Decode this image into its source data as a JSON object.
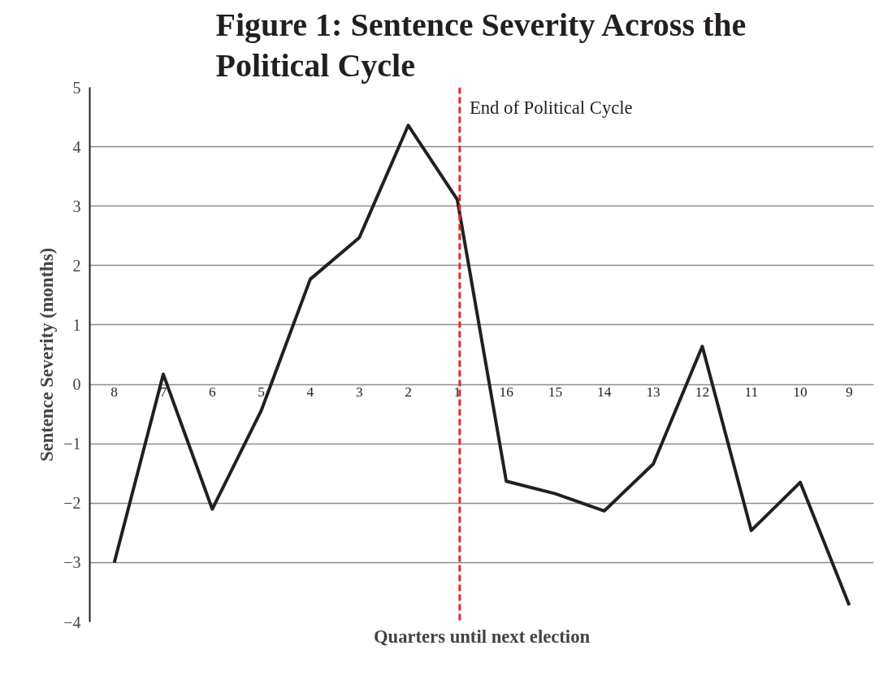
{
  "chart_data": {
    "type": "line",
    "title": "Figure 1: Sentence Severity Across the Political Cycle",
    "xlabel": "Quarters until next election",
    "ylabel": "Sentence Severity (months)",
    "categories": [
      "8",
      "7",
      "6",
      "5",
      "4",
      "3",
      "2",
      "1",
      "16",
      "15",
      "14",
      "13",
      "12",
      "11",
      "10",
      "9"
    ],
    "series": [
      {
        "color": "#231f20",
        "values": [
          -3.0,
          0.17,
          -2.1,
          -0.44,
          1.77,
          2.47,
          4.36,
          3.11,
          -1.63,
          -1.84,
          -2.13,
          -1.34,
          0.64,
          -2.46,
          -1.65,
          -3.72
        ]
      }
    ],
    "ylim": [
      -4,
      5
    ],
    "yticks": [
      -4,
      -3,
      -2,
      -1,
      0,
      1,
      2,
      3,
      4,
      5
    ],
    "grid": "y",
    "marker": "none",
    "line_style": "solid",
    "ref_lines": [
      {
        "axis": "x",
        "value": "1",
        "label": "End of Political Cycle",
        "color": "#e8262a",
        "line_style": "dashed"
      }
    ]
  }
}
